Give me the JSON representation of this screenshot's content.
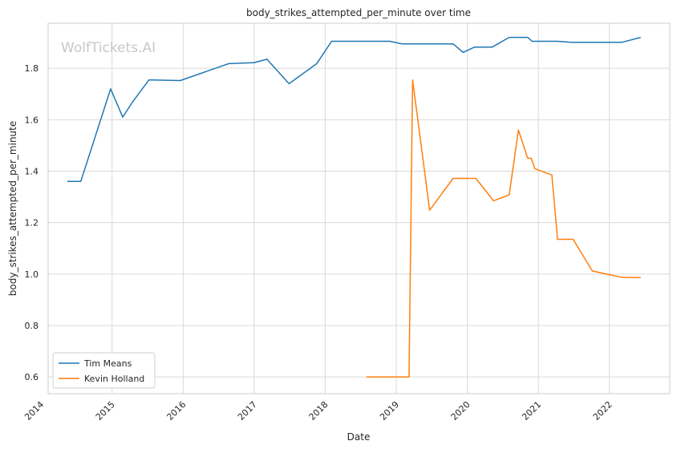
{
  "chart_data": {
    "type": "line",
    "title": "body_strikes_attempted_per_minute over time",
    "xlabel": "Date",
    "ylabel": "body_strikes_attempted_per_minute",
    "watermark": "WolfTickets.AI",
    "grid": true,
    "legend_position": "lower-left",
    "xlim": [
      2014.1,
      2022.85
    ],
    "ylim": [
      0.535,
      1.975
    ],
    "x_ticks": [
      {
        "value": 2014.0,
        "label": "2014"
      },
      {
        "value": 2015.0,
        "label": "2015"
      },
      {
        "value": 2016.0,
        "label": "2016"
      },
      {
        "value": 2017.0,
        "label": "2017"
      },
      {
        "value": 2018.0,
        "label": "2018"
      },
      {
        "value": 2019.0,
        "label": "2019"
      },
      {
        "value": 2020.0,
        "label": "2020"
      },
      {
        "value": 2021.0,
        "label": "2021"
      },
      {
        "value": 2022.0,
        "label": "2022"
      }
    ],
    "y_ticks": [
      {
        "value": 0.6,
        "label": "0.6"
      },
      {
        "value": 0.8,
        "label": "0.8"
      },
      {
        "value": 1.0,
        "label": "1.0"
      },
      {
        "value": 1.2,
        "label": "1.2"
      },
      {
        "value": 1.4,
        "label": "1.4"
      },
      {
        "value": 1.6,
        "label": "1.6"
      },
      {
        "value": 1.8,
        "label": "1.8"
      }
    ],
    "series": [
      {
        "name": "Tim Means",
        "color": "#1f77b4",
        "points": [
          [
            2014.37,
            1.36
          ],
          [
            2014.56,
            1.36
          ],
          [
            2014.98,
            1.72
          ],
          [
            2015.15,
            1.61
          ],
          [
            2015.29,
            1.67
          ],
          [
            2015.52,
            1.755
          ],
          [
            2015.96,
            1.752
          ],
          [
            2016.64,
            1.818
          ],
          [
            2017.0,
            1.822
          ],
          [
            2017.18,
            1.835
          ],
          [
            2017.49,
            1.74
          ],
          [
            2017.88,
            1.818
          ],
          [
            2018.09,
            1.905
          ],
          [
            2018.91,
            1.905
          ],
          [
            2019.08,
            1.895
          ],
          [
            2019.8,
            1.895
          ],
          [
            2019.94,
            1.862
          ],
          [
            2020.1,
            1.882
          ],
          [
            2020.35,
            1.882
          ],
          [
            2020.59,
            1.92
          ],
          [
            2020.85,
            1.92
          ],
          [
            2020.91,
            1.905
          ],
          [
            2021.27,
            1.905
          ],
          [
            2021.46,
            1.901
          ],
          [
            2022.18,
            1.901
          ],
          [
            2022.44,
            1.92
          ]
        ]
      },
      {
        "name": "Kevin Holland",
        "color": "#ff7f0e",
        "points": [
          [
            2018.58,
            0.6
          ],
          [
            2019.18,
            0.6
          ],
          [
            2019.23,
            1.755
          ],
          [
            2019.47,
            1.248
          ],
          [
            2019.8,
            1.372
          ],
          [
            2020.12,
            1.372
          ],
          [
            2020.37,
            1.285
          ],
          [
            2020.59,
            1.308
          ],
          [
            2020.72,
            1.56
          ],
          [
            2020.85,
            1.45
          ],
          [
            2020.9,
            1.45
          ],
          [
            2020.95,
            1.41
          ],
          [
            2021.19,
            1.385
          ],
          [
            2021.27,
            1.135
          ],
          [
            2021.49,
            1.135
          ],
          [
            2021.76,
            1.012
          ],
          [
            2022.16,
            0.988
          ],
          [
            2022.44,
            0.986
          ]
        ]
      }
    ]
  }
}
